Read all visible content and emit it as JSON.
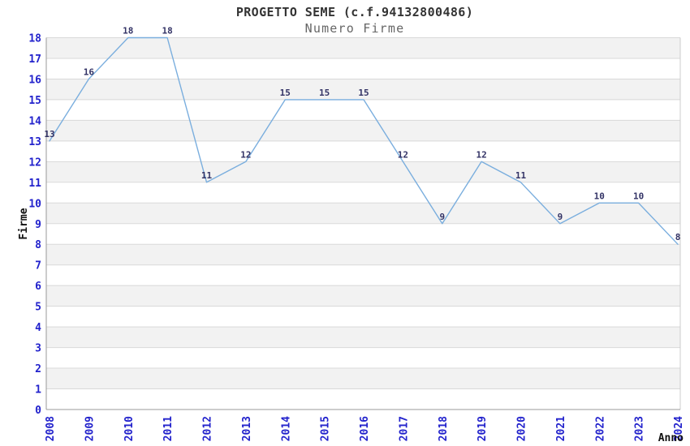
{
  "chart_data": {
    "type": "line",
    "title": "PROGETTO SEME (c.f.94132800486)",
    "subtitle": "Numero Firme",
    "xlabel": "Anno",
    "ylabel": "Firme",
    "categories": [
      "2008",
      "2009",
      "2010",
      "2011",
      "2012",
      "2013",
      "2014",
      "2015",
      "2016",
      "2017",
      "2018",
      "2019",
      "2020",
      "2021",
      "2022",
      "2023",
      "2024"
    ],
    "values": [
      13,
      16,
      18,
      18,
      11,
      12,
      15,
      15,
      15,
      12,
      9,
      12,
      11,
      9,
      10,
      10,
      8
    ],
    "ylim": [
      0,
      18
    ],
    "ytick_step": 1,
    "grid": true,
    "alternating_bands": true,
    "point_labels_shown": true,
    "legend_position": "none",
    "x_tick_rotation_degrees": 90,
    "colors": {
      "line": "#7aaede",
      "axis_tick_labels": "#2222cc",
      "point_labels": "#333366",
      "title": "#333333",
      "subtitle": "#666666",
      "axis_titles": "#111111",
      "band": "#f2f2f2",
      "gridline": "#d9d9d9",
      "axis_line": "#999999",
      "plot_border": "#cccccc",
      "background": "#ffffff"
    }
  }
}
